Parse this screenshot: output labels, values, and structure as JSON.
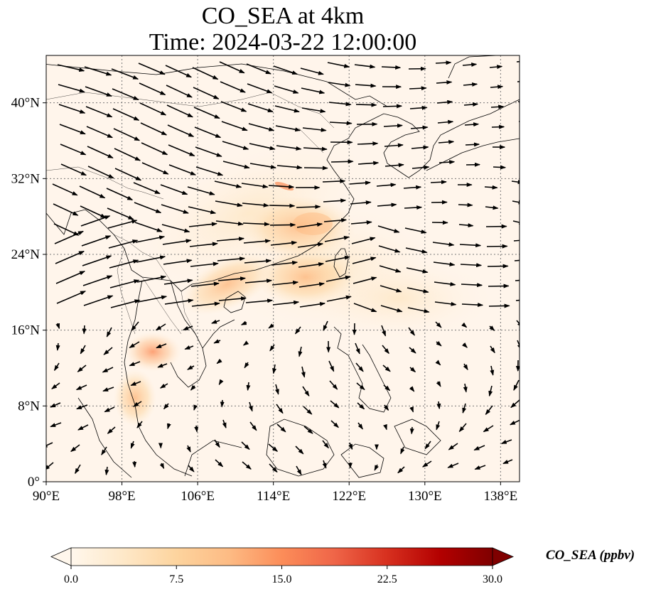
{
  "title_line1": "CO_SEA at 4km",
  "title_line2": "Time: 2024-03-22 12:00:00",
  "map": {
    "projection": "PlateCarree",
    "lon_range": [
      90,
      140
    ],
    "lat_range": [
      0,
      45
    ],
    "lon_ticks": [
      {
        "value": 90,
        "label": "90°E"
      },
      {
        "value": 98,
        "label": "98°E"
      },
      {
        "value": 106,
        "label": "106°E"
      },
      {
        "value": 114,
        "label": "114°E"
      },
      {
        "value": 122,
        "label": "122°E"
      },
      {
        "value": 130,
        "label": "130°E"
      },
      {
        "value": 138,
        "label": "138°E"
      }
    ],
    "lat_ticks": [
      {
        "value": 0,
        "label": "0°"
      },
      {
        "value": 8,
        "label": "8°N"
      },
      {
        "value": 16,
        "label": "16°N"
      },
      {
        "value": 24,
        "label": "24°N"
      },
      {
        "value": 32,
        "label": "32°N"
      },
      {
        "value": 40,
        "label": "40°N"
      }
    ],
    "gridlines": "dotted",
    "background_color": "#fff5eb",
    "wind_vectors": true
  },
  "colorbar": {
    "label": "CO_SEA (ppbv)",
    "vmin": 0,
    "vmax": 30,
    "ticks": [
      "0.0",
      "7.5",
      "15.0",
      "22.5",
      "30.0"
    ],
    "colormap": "OrRd",
    "colors": [
      "#fff7ec",
      "#fee8c8",
      "#fdd49e",
      "#fdbb84",
      "#fc8d59",
      "#ef6548",
      "#d7301f",
      "#b30000",
      "#7f0000"
    ],
    "extend": "both"
  }
}
